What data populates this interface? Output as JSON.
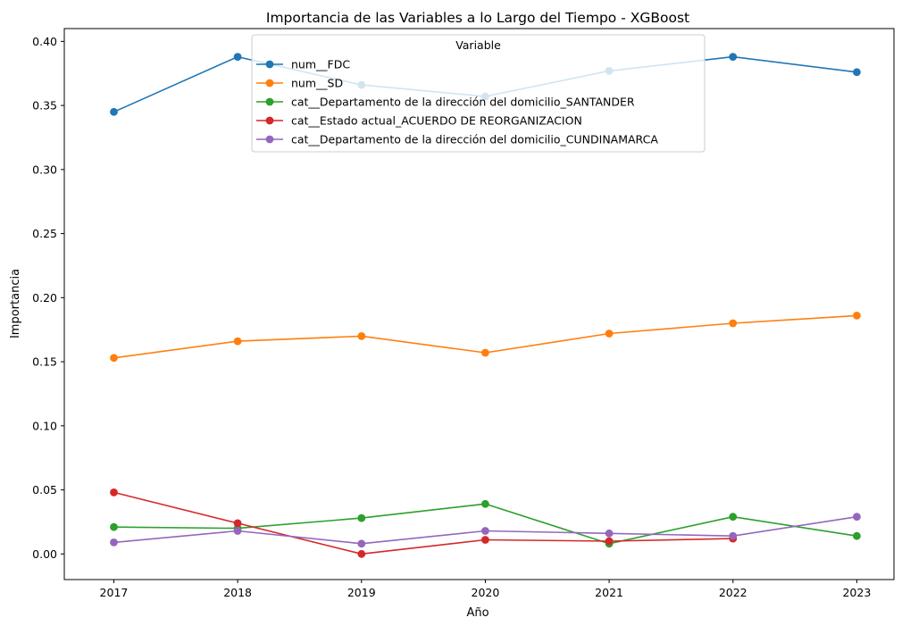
{
  "chart_data": {
    "type": "line",
    "title": "Importancia de las Variables a lo Largo del Tiempo - XGBoost",
    "xlabel": "Año",
    "ylabel": "Importancia",
    "x": [
      2017,
      2018,
      2019,
      2020,
      2021,
      2022,
      2023
    ],
    "x_tick_labels": [
      "2017",
      "2018",
      "2019",
      "2020",
      "2021",
      "2022",
      "2023"
    ],
    "y_ticks": [
      0.0,
      0.05,
      0.1,
      0.15,
      0.2,
      0.25,
      0.3,
      0.35,
      0.4
    ],
    "y_tick_labels": [
      "0.00",
      "0.05",
      "0.10",
      "0.15",
      "0.20",
      "0.25",
      "0.30",
      "0.35",
      "0.40"
    ],
    "xlim": [
      2016.6,
      2023.3
    ],
    "ylim": [
      -0.02,
      0.41
    ],
    "grid": false,
    "legend": {
      "title": "Variable",
      "placement": "top-center"
    },
    "markers": true,
    "series": [
      {
        "name": "num__FDC",
        "color": "#1f77b4",
        "values": [
          0.345,
          0.388,
          0.366,
          0.357,
          0.377,
          0.388,
          0.376
        ]
      },
      {
        "name": "num__SD",
        "color": "#ff7f0e",
        "values": [
          0.153,
          0.166,
          0.17,
          0.157,
          0.172,
          0.18,
          0.186
        ]
      },
      {
        "name": "cat__Departamento de la dirección del domicilio_SANTANDER",
        "color": "#2ca02c",
        "values": [
          0.021,
          0.02,
          0.028,
          0.039,
          0.008,
          0.029,
          0.014
        ]
      },
      {
        "name": "cat__Estado actual_ACUERDO DE REORGANIZACION",
        "color": "#d62728",
        "values": [
          0.048,
          0.024,
          0.0,
          0.011,
          0.01,
          0.012,
          null
        ]
      },
      {
        "name": "cat__Departamento de la dirección del domicilio_CUNDINAMARCA",
        "color": "#9467bd",
        "values": [
          0.009,
          0.018,
          0.008,
          0.018,
          0.016,
          0.014,
          0.029
        ]
      }
    ]
  }
}
